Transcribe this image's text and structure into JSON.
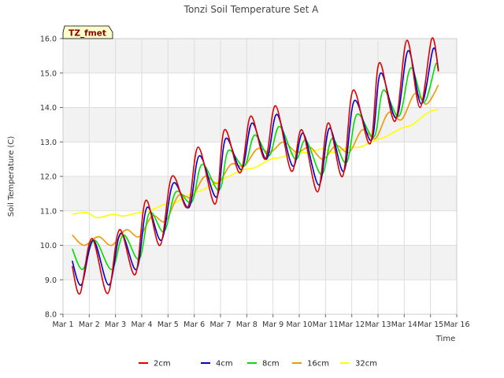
{
  "chart_data": {
    "type": "line",
    "title": "Tonzi Soil Temperature Set A",
    "xlabel": "Time",
    "ylabel": "Soil Temperature (C)",
    "tag": "TZ_fmet",
    "ylim": [
      8.0,
      16.0
    ],
    "yticks": [
      "8.0",
      "9.0",
      "10.0",
      "11.0",
      "12.0",
      "13.0",
      "14.0",
      "15.0",
      "16.0"
    ],
    "xlim": [
      1,
      16
    ],
    "xticks": [
      "Mar 1",
      "Mar 2",
      "Mar 3",
      "Mar 4",
      "Mar 5",
      "Mar 6",
      "Mar 7",
      "Mar 8",
      "Mar 9",
      "Mar 10",
      "Mar 11",
      "Mar 12",
      "Mar 13",
      "Mar 14",
      "Mar 15",
      "Mar 16"
    ],
    "grid": true,
    "legend_position": "bottom",
    "series": [
      {
        "name": "2cm",
        "color": "#dd0000",
        "x": [
          1.35,
          1.65,
          2.1,
          2.7,
          3.15,
          3.75,
          4.15,
          4.7,
          5.15,
          5.75,
          6.15,
          6.8,
          7.15,
          7.75,
          8.15,
          8.7,
          9.1,
          9.7,
          10.1,
          10.7,
          11.1,
          11.65,
          12.05,
          12.7,
          13.05,
          13.65,
          14.1,
          14.6,
          15.05,
          15.3
        ],
        "y": [
          9.4,
          8.6,
          10.2,
          8.6,
          10.45,
          9.15,
          11.3,
          10.0,
          12.0,
          11.1,
          12.85,
          11.2,
          13.35,
          12.1,
          13.75,
          12.5,
          14.05,
          12.15,
          13.35,
          11.55,
          13.55,
          12.0,
          14.5,
          12.95,
          15.3,
          13.6,
          15.95,
          14.0,
          16.0,
          15.05
        ]
      },
      {
        "name": "4cm",
        "color": "#0000cc",
        "x": [
          1.35,
          1.7,
          2.15,
          2.75,
          3.2,
          3.8,
          4.2,
          4.75,
          5.2,
          5.8,
          6.2,
          6.85,
          7.2,
          7.8,
          8.2,
          8.75,
          9.15,
          9.75,
          10.15,
          10.75,
          11.15,
          11.7,
          12.1,
          12.75,
          13.1,
          13.7,
          14.15,
          14.65,
          15.1,
          15.3
        ],
        "y": [
          9.55,
          8.85,
          10.15,
          8.85,
          10.35,
          9.3,
          11.1,
          10.15,
          11.8,
          11.1,
          12.6,
          11.4,
          13.1,
          12.2,
          13.55,
          12.5,
          13.8,
          12.3,
          13.25,
          11.75,
          13.4,
          12.15,
          14.2,
          13.05,
          15.0,
          13.7,
          15.65,
          14.1,
          15.7,
          15.1
        ]
      },
      {
        "name": "8cm",
        "color": "#00dd00",
        "x": [
          1.35,
          1.75,
          2.2,
          2.85,
          3.3,
          3.9,
          4.3,
          4.85,
          5.3,
          5.9,
          6.3,
          6.95,
          7.3,
          7.9,
          8.3,
          8.85,
          9.25,
          9.85,
          10.25,
          10.85,
          11.25,
          11.8,
          12.2,
          12.85,
          13.2,
          13.8,
          14.25,
          14.75,
          15.2,
          15.3
        ],
        "y": [
          9.9,
          9.3,
          10.15,
          9.3,
          10.3,
          9.6,
          10.95,
          10.4,
          11.55,
          11.25,
          12.35,
          11.6,
          12.75,
          12.3,
          13.2,
          12.6,
          13.45,
          12.5,
          13.05,
          12.05,
          13.1,
          12.4,
          13.8,
          13.15,
          14.5,
          13.75,
          15.15,
          14.15,
          15.25,
          15.05
        ]
      },
      {
        "name": "16cm",
        "color": "#ee9900",
        "x": [
          1.35,
          1.8,
          2.35,
          2.85,
          3.4,
          3.9,
          4.4,
          4.9,
          5.4,
          5.9,
          6.4,
          6.9,
          7.4,
          7.9,
          8.4,
          8.9,
          9.4,
          9.9,
          10.4,
          10.9,
          11.4,
          11.9,
          12.4,
          12.9,
          13.4,
          13.9,
          14.4,
          14.85,
          15.3
        ],
        "y": [
          10.3,
          10.0,
          10.25,
          10.0,
          10.45,
          10.25,
          10.85,
          10.7,
          11.45,
          11.4,
          12.0,
          11.8,
          12.35,
          12.3,
          12.8,
          12.7,
          13.0,
          12.7,
          12.85,
          12.5,
          12.9,
          12.7,
          13.35,
          13.1,
          13.85,
          13.65,
          14.4,
          14.1,
          14.65
        ]
      },
      {
        "name": "32cm",
        "color": "#ffff00",
        "x": [
          1.35,
          1.9,
          2.3,
          2.9,
          3.3,
          3.9,
          4.3,
          4.9,
          5.3,
          5.9,
          6.3,
          6.9,
          7.3,
          7.9,
          8.3,
          8.9,
          9.3,
          9.9,
          10.3,
          10.9,
          11.3,
          11.9,
          12.3,
          12.9,
          13.3,
          13.9,
          14.3,
          14.9,
          15.3
        ],
        "y": [
          10.9,
          10.95,
          10.8,
          10.9,
          10.85,
          10.95,
          11.0,
          11.2,
          11.25,
          11.5,
          11.6,
          11.85,
          12.0,
          12.2,
          12.25,
          12.5,
          12.55,
          12.7,
          12.7,
          12.8,
          12.7,
          12.85,
          12.85,
          13.05,
          13.15,
          13.4,
          13.5,
          13.85,
          13.95
        ]
      }
    ]
  }
}
